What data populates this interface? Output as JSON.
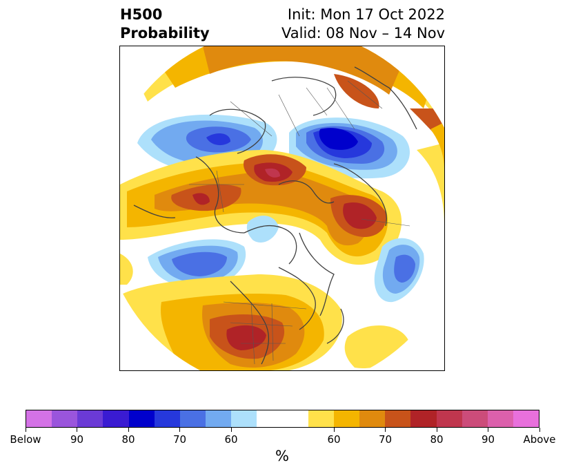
{
  "header": {
    "left_title_line1": "H500",
    "left_title_line2": "Probability",
    "right_title_line1": "Init: Mon 17 Oct 2022",
    "right_title_line2": "Valid: 08 Nov – 14 Nov"
  },
  "colorbar": {
    "label": "%",
    "colors": [
      "#d472e6",
      "#9a55dc",
      "#6b3ad6",
      "#3a1bd2",
      "#0000cc",
      "#2638dc",
      "#4a70e4",
      "#72aaf0",
      "#ade0fb",
      "#ffffff",
      "#ffffff",
      "#ffe14a",
      "#f4b500",
      "#e08a0e",
      "#c8531a",
      "#b02327",
      "#c0364e",
      "#cc4c7a",
      "#dc60ac",
      "#e870dc"
    ],
    "tick_labels": [
      "Below",
      "90",
      "80",
      "70",
      "60",
      "60",
      "70",
      "80",
      "90",
      "Above"
    ]
  },
  "map": {
    "anomaly_colors": {
      "above_60": "#ffe14a",
      "above_65": "#f4b500",
      "above_70": "#e08a0e",
      "above_75": "#c8531a",
      "above_80": "#b02327",
      "above_85": "#c0364e",
      "below_60": "#ade0fb",
      "below_65": "#72aaf0",
      "below_70": "#4a70e4",
      "below_75": "#2638dc",
      "below_80": "#0000cc"
    }
  }
}
